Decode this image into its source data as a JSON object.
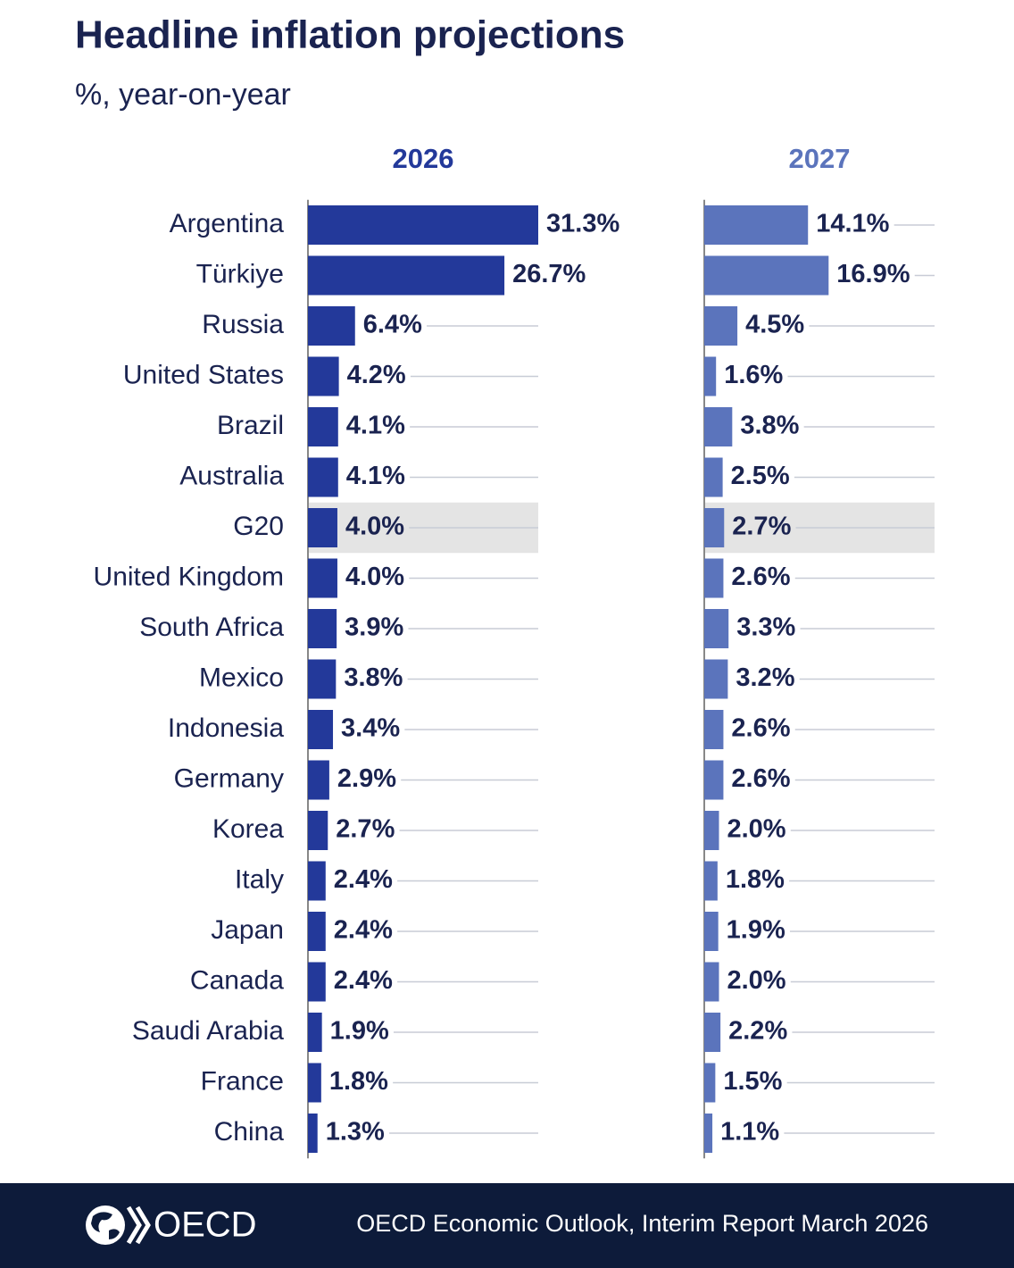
{
  "chart_data": {
    "type": "bar",
    "title": "Headline inflation projections",
    "subtitle": "%, year-on-year",
    "categories": [
      "Argentina",
      "Türkiye",
      "Russia",
      "United States",
      "Brazil",
      "Australia",
      "G20",
      "United Kingdom",
      "South Africa",
      "Mexico",
      "Indonesia",
      "Germany",
      "Korea",
      "Italy",
      "Japan",
      "Canada",
      "Saudi Arabia",
      "France",
      "China"
    ],
    "highlight": "G20",
    "series": [
      {
        "name": "2026",
        "color": "#23399a",
        "values": [
          31.3,
          26.7,
          6.4,
          4.2,
          4.1,
          4.1,
          4.0,
          4.0,
          3.9,
          3.8,
          3.4,
          2.9,
          2.7,
          2.4,
          2.4,
          2.4,
          1.9,
          1.8,
          1.3
        ],
        "value_labels": [
          "31.3%",
          "26.7%",
          "6.4%",
          "4.2%",
          "4.1%",
          "4.1%",
          "4.0%",
          "4.0%",
          "3.9%",
          "3.8%",
          "3.4%",
          "2.9%",
          "2.7%",
          "2.4%",
          "2.4%",
          "2.4%",
          "1.9%",
          "1.8%",
          "1.3%"
        ]
      },
      {
        "name": "2027",
        "color": "#5b74bc",
        "values": [
          14.1,
          16.9,
          4.5,
          1.6,
          3.8,
          2.5,
          2.7,
          2.6,
          3.3,
          3.2,
          2.6,
          2.6,
          2.0,
          1.8,
          1.9,
          2.0,
          2.2,
          1.5,
          1.1
        ],
        "value_labels": [
          "14.1%",
          "16.9%",
          "4.5%",
          "1.6%",
          "3.8%",
          "2.5%",
          "2.7%",
          "2.6%",
          "3.3%",
          "3.2%",
          "2.6%",
          "2.6%",
          "2.0%",
          "1.8%",
          "1.9%",
          "2.0%",
          "2.2%",
          "1.5%",
          "1.1%"
        ]
      }
    ]
  },
  "footer": {
    "logo": "OECD",
    "source": "OECD Economic Outlook, Interim Report March 2026"
  }
}
